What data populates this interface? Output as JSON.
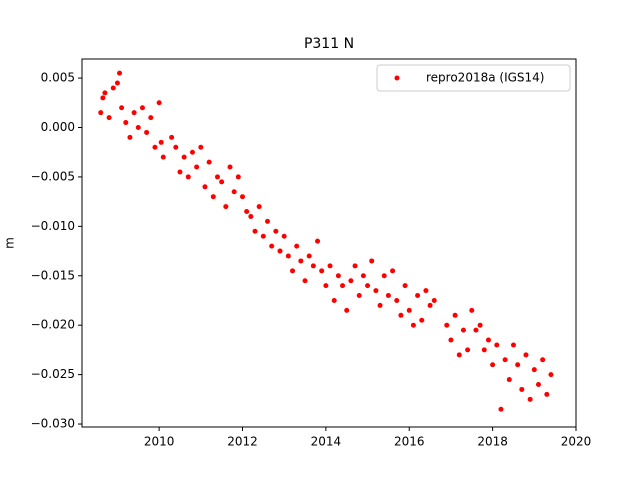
{
  "chart_data": {
    "type": "scatter",
    "title": "P311 N",
    "y_label": "m",
    "x": [
      2008.6,
      2008.65,
      2008.7,
      2008.8,
      2008.9,
      2009.0,
      2009.05,
      2009.1,
      2009.2,
      2009.3,
      2009.4,
      2009.5,
      2009.6,
      2009.7,
      2009.8,
      2009.9,
      2010.0,
      2010.05,
      2010.1,
      2010.3,
      2010.4,
      2010.5,
      2010.6,
      2010.7,
      2010.8,
      2010.9,
      2011.0,
      2011.1,
      2011.2,
      2011.3,
      2011.4,
      2011.5,
      2011.6,
      2011.7,
      2011.8,
      2011.9,
      2012.0,
      2012.1,
      2012.2,
      2012.3,
      2012.4,
      2012.5,
      2012.6,
      2012.7,
      2012.8,
      2012.9,
      2013.0,
      2013.1,
      2013.2,
      2013.3,
      2013.4,
      2013.5,
      2013.6,
      2013.7,
      2013.8,
      2013.9,
      2014.0,
      2014.1,
      2014.2,
      2014.3,
      2014.4,
      2014.5,
      2014.6,
      2014.7,
      2014.8,
      2014.9,
      2015.0,
      2015.1,
      2015.2,
      2015.3,
      2015.4,
      2015.5,
      2015.6,
      2015.7,
      2015.8,
      2015.9,
      2016.0,
      2016.1,
      2016.2,
      2016.3,
      2016.4,
      2016.5,
      2016.6,
      2016.9,
      2017.0,
      2017.1,
      2017.2,
      2017.3,
      2017.4,
      2017.5,
      2017.6,
      2017.7,
      2017.8,
      2017.9,
      2018.0,
      2018.1,
      2018.2,
      2018.3,
      2018.4,
      2018.5,
      2018.6,
      2018.7,
      2018.8,
      2018.9,
      2019.0,
      2019.1,
      2019.2,
      2019.3,
      2019.4
    ],
    "series": [
      {
        "name": "repro2018a (IGS14)",
        "color": "#ff0000",
        "values": [
          0.0015,
          0.003,
          0.0035,
          0.001,
          0.004,
          0.0045,
          0.0055,
          0.002,
          0.0005,
          -0.001,
          0.0015,
          0.0,
          0.002,
          -0.0005,
          0.001,
          -0.002,
          0.0025,
          -0.0015,
          -0.003,
          -0.001,
          -0.002,
          -0.0045,
          -0.003,
          -0.005,
          -0.0025,
          -0.004,
          -0.002,
          -0.006,
          -0.0035,
          -0.007,
          -0.005,
          -0.0055,
          -0.008,
          -0.004,
          -0.0065,
          -0.005,
          -0.007,
          -0.0085,
          -0.009,
          -0.0105,
          -0.008,
          -0.011,
          -0.0095,
          -0.012,
          -0.0105,
          -0.0125,
          -0.011,
          -0.013,
          -0.0145,
          -0.012,
          -0.0135,
          -0.0155,
          -0.013,
          -0.014,
          -0.0115,
          -0.0145,
          -0.016,
          -0.014,
          -0.0175,
          -0.015,
          -0.016,
          -0.0185,
          -0.0155,
          -0.014,
          -0.017,
          -0.015,
          -0.016,
          -0.0135,
          -0.0165,
          -0.018,
          -0.015,
          -0.017,
          -0.0145,
          -0.0175,
          -0.019,
          -0.016,
          -0.0185,
          -0.02,
          -0.017,
          -0.0195,
          -0.0165,
          -0.018,
          -0.0175,
          -0.02,
          -0.0215,
          -0.019,
          -0.023,
          -0.0205,
          -0.0225,
          -0.0185,
          -0.0205,
          -0.02,
          -0.0225,
          -0.0215,
          -0.024,
          -0.022,
          -0.0285,
          -0.0235,
          -0.0255,
          -0.022,
          -0.024,
          -0.0265,
          -0.023,
          -0.0275,
          -0.0245,
          -0.026,
          -0.0235,
          -0.027,
          -0.025
        ]
      }
    ],
    "xlim": [
      2008.15,
      2020
    ],
    "xticks": [
      2010,
      2012,
      2014,
      2016,
      2018,
      2020
    ],
    "ylim": [
      -0.0303,
      0.00693
    ],
    "yticks": [
      {
        "value": 0.005,
        "label": "0.005"
      },
      {
        "value": 0,
        "label": "0.000"
      },
      {
        "value": -0.005,
        "label": "−0.005"
      },
      {
        "value": -0.01,
        "label": "−0.010"
      },
      {
        "value": -0.015,
        "label": "−0.015"
      },
      {
        "value": -0.02,
        "label": "−0.020"
      },
      {
        "value": -0.025,
        "label": "−0.025"
      },
      {
        "value": -0.03,
        "label": "−0.030"
      }
    ],
    "legend": "upper right"
  }
}
